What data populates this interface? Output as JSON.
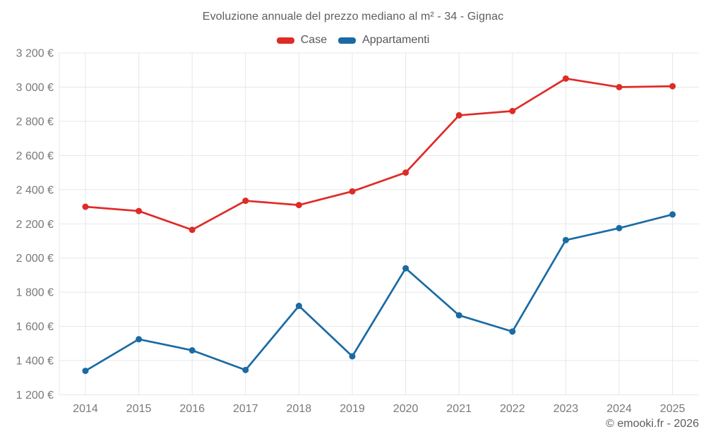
{
  "chart_data": {
    "type": "line",
    "title": "Evoluzione annuale del prezzo mediano al m² - 34 - Gignac",
    "categories": [
      "2014",
      "2015",
      "2016",
      "2017",
      "2018",
      "2019",
      "2020",
      "2021",
      "2022",
      "2023",
      "2024",
      "2025"
    ],
    "series": [
      {
        "name": "Case",
        "color": "#df2b27",
        "values": [
          2300,
          2275,
          2165,
          2335,
          2310,
          2390,
          2500,
          2835,
          2860,
          3050,
          3000,
          3005
        ]
      },
      {
        "name": "Appartamenti",
        "color": "#1a6ba3",
        "values": [
          1340,
          1525,
          1460,
          1345,
          1720,
          1425,
          1940,
          1665,
          1570,
          2105,
          2175,
          2255
        ]
      }
    ],
    "xlabel": "",
    "ylabel": "",
    "ylim": [
      1200,
      3200
    ],
    "y_tick_step": 200,
    "y_tick_labels": [
      "1 200 €",
      "1 400 €",
      "1 600 €",
      "1 800 €",
      "2 000 €",
      "2 200 €",
      "2 400 €",
      "2 600 €",
      "2 800 €",
      "3 000 €",
      "3 200 €"
    ],
    "grid": true,
    "legend_position": "top"
  },
  "attribution": "© emooki.fr - 2026",
  "colors": {
    "grid": "#e7e7e7",
    "axis_text": "#77797c",
    "title_text": "#5b5e62",
    "legend_text": "#55585c",
    "attribution_text": "#595c60",
    "background": "#ffffff"
  }
}
